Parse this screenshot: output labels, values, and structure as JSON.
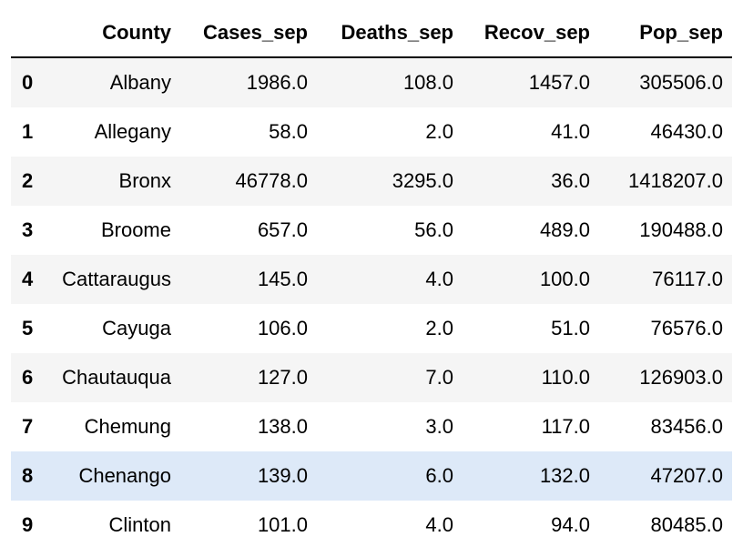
{
  "table": {
    "columns": [
      "",
      "County",
      "Cases_sep",
      "Deaths_sep",
      "Recov_sep",
      "Pop_sep"
    ],
    "rows": [
      {
        "index": "0",
        "County": "Albany",
        "Cases_sep": "1986.0",
        "Deaths_sep": "108.0",
        "Recov_sep": "1457.0",
        "Pop_sep": "305506.0"
      },
      {
        "index": "1",
        "County": "Allegany",
        "Cases_sep": "58.0",
        "Deaths_sep": "2.0",
        "Recov_sep": "41.0",
        "Pop_sep": "46430.0"
      },
      {
        "index": "2",
        "County": "Bronx",
        "Cases_sep": "46778.0",
        "Deaths_sep": "3295.0",
        "Recov_sep": "36.0",
        "Pop_sep": "1418207.0"
      },
      {
        "index": "3",
        "County": "Broome",
        "Cases_sep": "657.0",
        "Deaths_sep": "56.0",
        "Recov_sep": "489.0",
        "Pop_sep": "190488.0"
      },
      {
        "index": "4",
        "County": "Cattaraugus",
        "Cases_sep": "145.0",
        "Deaths_sep": "4.0",
        "Recov_sep": "100.0",
        "Pop_sep": "76117.0"
      },
      {
        "index": "5",
        "County": "Cayuga",
        "Cases_sep": "106.0",
        "Deaths_sep": "2.0",
        "Recov_sep": "51.0",
        "Pop_sep": "76576.0"
      },
      {
        "index": "6",
        "County": "Chautauqua",
        "Cases_sep": "127.0",
        "Deaths_sep": "7.0",
        "Recov_sep": "110.0",
        "Pop_sep": "126903.0"
      },
      {
        "index": "7",
        "County": "Chemung",
        "Cases_sep": "138.0",
        "Deaths_sep": "3.0",
        "Recov_sep": "117.0",
        "Pop_sep": "83456.0"
      },
      {
        "index": "8",
        "County": "Chenango",
        "Cases_sep": "139.0",
        "Deaths_sep": "6.0",
        "Recov_sep": "132.0",
        "Pop_sep": "47207.0"
      },
      {
        "index": "9",
        "County": "Clinton",
        "Cases_sep": "101.0",
        "Deaths_sep": "4.0",
        "Recov_sep": "94.0",
        "Pop_sep": "80485.0"
      }
    ],
    "hovered_row": 8
  },
  "colors": {
    "stripe": "#f5f5f5",
    "hover": "#dde9f8",
    "header_rule": "#000000"
  }
}
